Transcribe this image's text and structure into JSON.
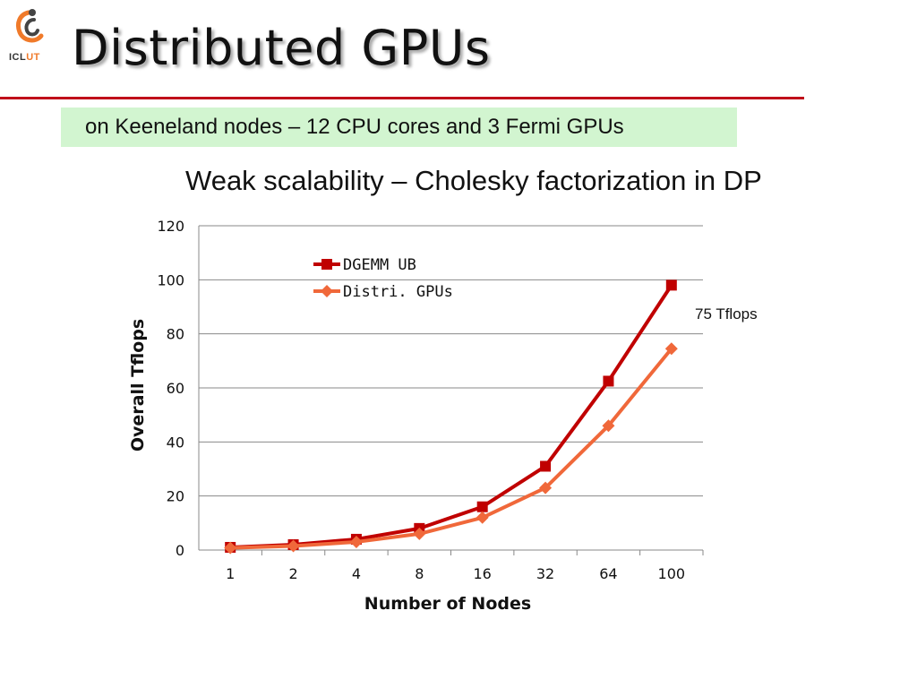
{
  "logo": {
    "text_a": "ICL",
    "text_b": "UT"
  },
  "slide": {
    "title": "Distributed GPUs",
    "subtitle": "on Keeneland nodes – 12 CPU cores and 3 Fermi GPUs"
  },
  "colors": {
    "accent_rule": "#c0101a",
    "subtitle_bg": "#d2f5d0",
    "series_dgemm": "#c00000",
    "series_distri": "#f0683a"
  },
  "chart_data": {
    "type": "line",
    "title": "Weak scalability – Cholesky factorization in DP",
    "xlabel": "Number of Nodes",
    "ylabel": "Overall Tflops",
    "categories": [
      "1",
      "2",
      "4",
      "8",
      "16",
      "32",
      "64",
      "100"
    ],
    "ylim": [
      0,
      120
    ],
    "yticks": [
      "0",
      "20",
      "40",
      "60",
      "80",
      "100",
      "120"
    ],
    "grid": true,
    "legend_position": "top-left inside plot",
    "series": [
      {
        "name": "DGEMM UB",
        "marker": "square",
        "color": "#c00000",
        "values": [
          1,
          2,
          4,
          8,
          16,
          31,
          62.5,
          98
        ]
      },
      {
        "name": "Distri. GPUs",
        "marker": "diamond",
        "color": "#f0683a",
        "values": [
          0.8,
          1.5,
          3,
          6,
          12,
          23,
          46,
          74.5
        ]
      }
    ],
    "annotation": "75 Tflops"
  }
}
